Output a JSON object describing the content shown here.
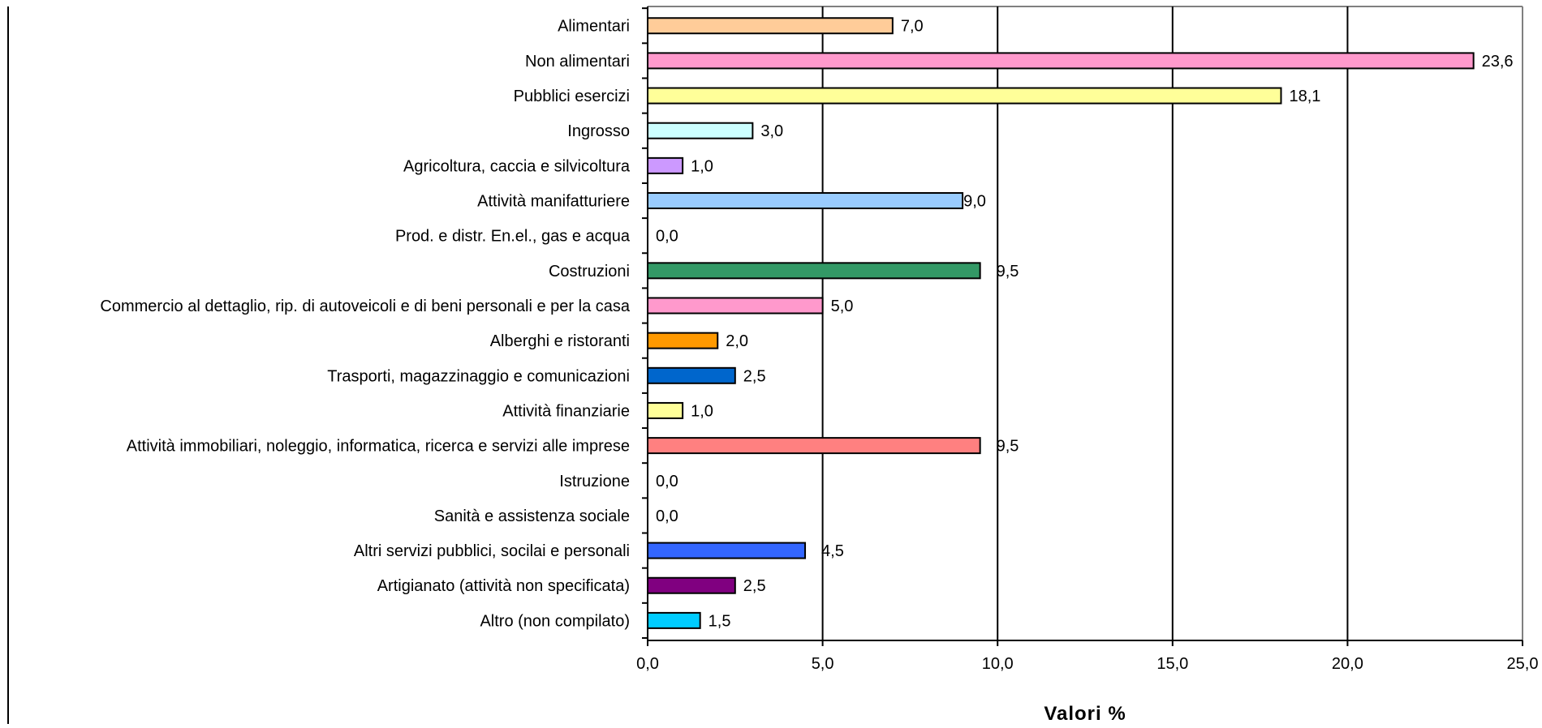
{
  "chart_data": {
    "type": "bar",
    "orientation": "horizontal",
    "title": "",
    "xlabel": "Valori %",
    "ylabel": "",
    "xlim": [
      0,
      25
    ],
    "x_ticks": [
      0,
      5,
      10,
      15,
      20,
      25
    ],
    "x_tick_labels": [
      "0,0",
      "5,0",
      "10,0",
      "15,0",
      "20,0",
      "25,0"
    ],
    "grid": "vertical",
    "legend": "none",
    "categories": [
      "Alimentari",
      "Non alimentari",
      "Pubblici esercizi",
      "Ingrosso",
      "Agricoltura, caccia e silvicoltura",
      "Attività manifatturiere",
      "Prod. e distr. En.el., gas e acqua",
      "Costruzioni",
      "Commercio al dettaglio, rip. di autoveicoli e di beni personali e per la casa",
      "Alberghi e ristoranti",
      "Trasporti, magazzinaggio e comunicazioni",
      "Attività finanziarie",
      "Attività immobiliari, noleggio, informatica, ricerca e servizi alle imprese",
      "Istruzione",
      "Sanità e assistenza sociale",
      "Altri servizi pubblici, socilai e personali",
      "Artigianato (attività non specificata)",
      "Altro (non compilato)"
    ],
    "values": [
      7.0,
      23.6,
      18.1,
      3.0,
      1.0,
      9.0,
      0.0,
      9.5,
      5.0,
      2.0,
      2.5,
      1.0,
      9.5,
      0.0,
      0.0,
      4.5,
      2.5,
      1.5
    ],
    "value_labels": [
      "7,0",
      "23,6",
      "18,1",
      "3,0",
      "1,0",
      "9,0",
      "0,0",
      "9,5",
      "5,0",
      "2,0",
      "2,5",
      "1,0",
      "9,5",
      "0,0",
      "0,0",
      "4,5",
      "2,5",
      "1,5"
    ],
    "colors": [
      "#FFCC99",
      "#FF99CC",
      "#FFFF99",
      "#CCFFFF",
      "#CC99FF",
      "#99CCFF",
      "#FFFFFF",
      "#339966",
      "#FF99CC",
      "#FF9900",
      "#0066CC",
      "#FFFF99",
      "#FF8080",
      "#FFFFFF",
      "#FFFFFF",
      "#3366FF",
      "#800080",
      "#00CCFF"
    ]
  }
}
